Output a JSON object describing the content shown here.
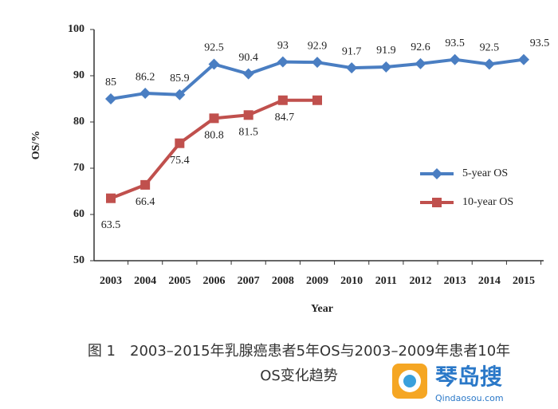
{
  "chart_data": {
    "type": "line",
    "ylabel": "OS/%",
    "xlabel": "Year",
    "categories": [
      "2003",
      "2004",
      "2005",
      "2006",
      "2007",
      "2008",
      "2009",
      "2010",
      "2011",
      "2012",
      "2013",
      "2014",
      "2015"
    ],
    "series": [
      {
        "name": "5-year OS",
        "color": "#4a7ec2",
        "marker": "diamond",
        "values": [
          85,
          86.2,
          85.9,
          92.5,
          90.4,
          93,
          92.9,
          91.7,
          91.9,
          92.6,
          93.5,
          92.5,
          93.5
        ]
      },
      {
        "name": "10-year OS",
        "color": "#c0504d",
        "marker": "square",
        "values": [
          63.5,
          66.4,
          75.4,
          80.8,
          81.5,
          84.7,
          84.7,
          null,
          null,
          null,
          null,
          null,
          null
        ],
        "value_labels": [
          "63.5",
          "66.4",
          "75.4",
          "80.8",
          "81.5",
          "84.7",
          null,
          null,
          null,
          null,
          null,
          null,
          null
        ]
      }
    ],
    "ylim": [
      50,
      100
    ],
    "yticks": [
      50,
      60,
      70,
      80,
      90,
      100
    ],
    "legend": "right",
    "caption": [
      "图 1　2003–2015年乳腺癌患者5年OS与2003–2009年患者10年",
      "OS变化趋势"
    ],
    "watermark": {
      "title": "琴岛搜",
      "url": "Qindaosou.com"
    }
  }
}
